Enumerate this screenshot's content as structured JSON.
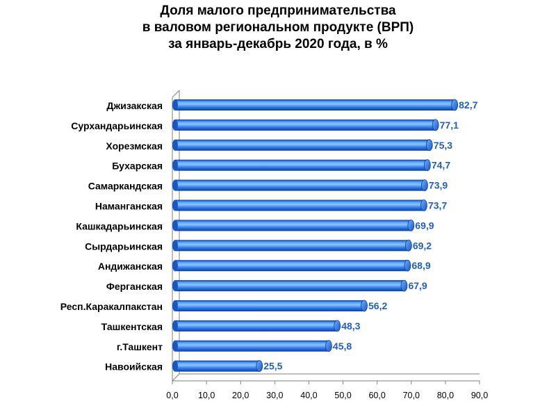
{
  "chart_data": {
    "type": "bar",
    "orientation": "horizontal",
    "title_lines": [
      "Доля малого предпринимательства",
      "в валовом региональном продукте (ВРП)",
      "за январь-декабрь 2020 года, в %"
    ],
    "categories": [
      "Джизакская",
      "Сурхандарьинская",
      "Хорезмская",
      "Бухарская",
      "Самаркандская",
      "Наманганская",
      "Кашкадарьинская",
      "Сырдарьинская",
      "Андижанская",
      "Ферганская",
      "Респ.Каракалпакстан",
      "Ташкентская",
      "г.Ташкент",
      "Навоийская"
    ],
    "values": [
      82.7,
      77.1,
      75.3,
      74.7,
      73.9,
      73.7,
      69.9,
      69.2,
      68.9,
      67.9,
      56.2,
      48.3,
      45.8,
      25.5
    ],
    "value_labels": [
      "82,7",
      "77,1",
      "75,3",
      "74,7",
      "73,9",
      "73,7",
      "69,9",
      "69,2",
      "68,9",
      "67,9",
      "56,2",
      "48,3",
      "45,8",
      "25,5"
    ],
    "xlim": [
      0,
      90
    ],
    "xticks": [
      0,
      10,
      20,
      30,
      40,
      50,
      60,
      70,
      80,
      90
    ],
    "xtick_labels": [
      "0,0",
      "10,0",
      "20,0",
      "30,0",
      "40,0",
      "50,0",
      "60,0",
      "70,0",
      "80,0",
      "90,0"
    ],
    "xlabel": "",
    "ylabel": "",
    "grid": false,
    "legend": "none",
    "bar_style": "3d-cylinder",
    "colors": {
      "bar_main": "#2f7ae6",
      "bar_light": "#8cc2ff",
      "bar_dark": "#0b3f9e",
      "value_label": "#1f5fbf",
      "axis": "#7f7f7f"
    }
  }
}
